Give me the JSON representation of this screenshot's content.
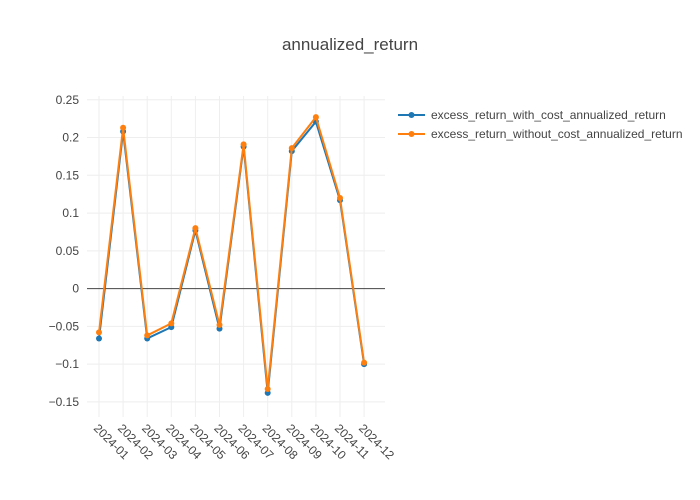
{
  "chart_data": {
    "type": "line",
    "title": "annualized_return",
    "xlabel": "",
    "ylabel": "",
    "categories": [
      "2024-01",
      "2024-02",
      "2024-03",
      "2024-04",
      "2024-05",
      "2024-06",
      "2024-07",
      "2024-08",
      "2024-09",
      "2024-10",
      "2024-11",
      "2024-12"
    ],
    "y_ticks": [
      "0.25",
      "0.2",
      "0.15",
      "0.1",
      "0.05",
      "0",
      "−0.05",
      "−0.1",
      "−0.15"
    ],
    "ylim": [
      -0.17,
      0.255
    ],
    "grid": true,
    "legend_position": "top-right",
    "series": [
      {
        "name": "excess_return_with_cost_annualized_return",
        "color": "#1f77b4",
        "values": [
          -0.066,
          0.208,
          -0.066,
          -0.051,
          0.077,
          -0.053,
          0.188,
          -0.138,
          0.182,
          0.221,
          0.117,
          -0.1
        ]
      },
      {
        "name": "excess_return_without_cost_annualized_return",
        "color": "#ff7f0e",
        "values": [
          -0.058,
          0.213,
          -0.062,
          -0.046,
          0.08,
          -0.048,
          0.191,
          -0.133,
          0.186,
          0.227,
          0.12,
          -0.098
        ]
      }
    ]
  }
}
